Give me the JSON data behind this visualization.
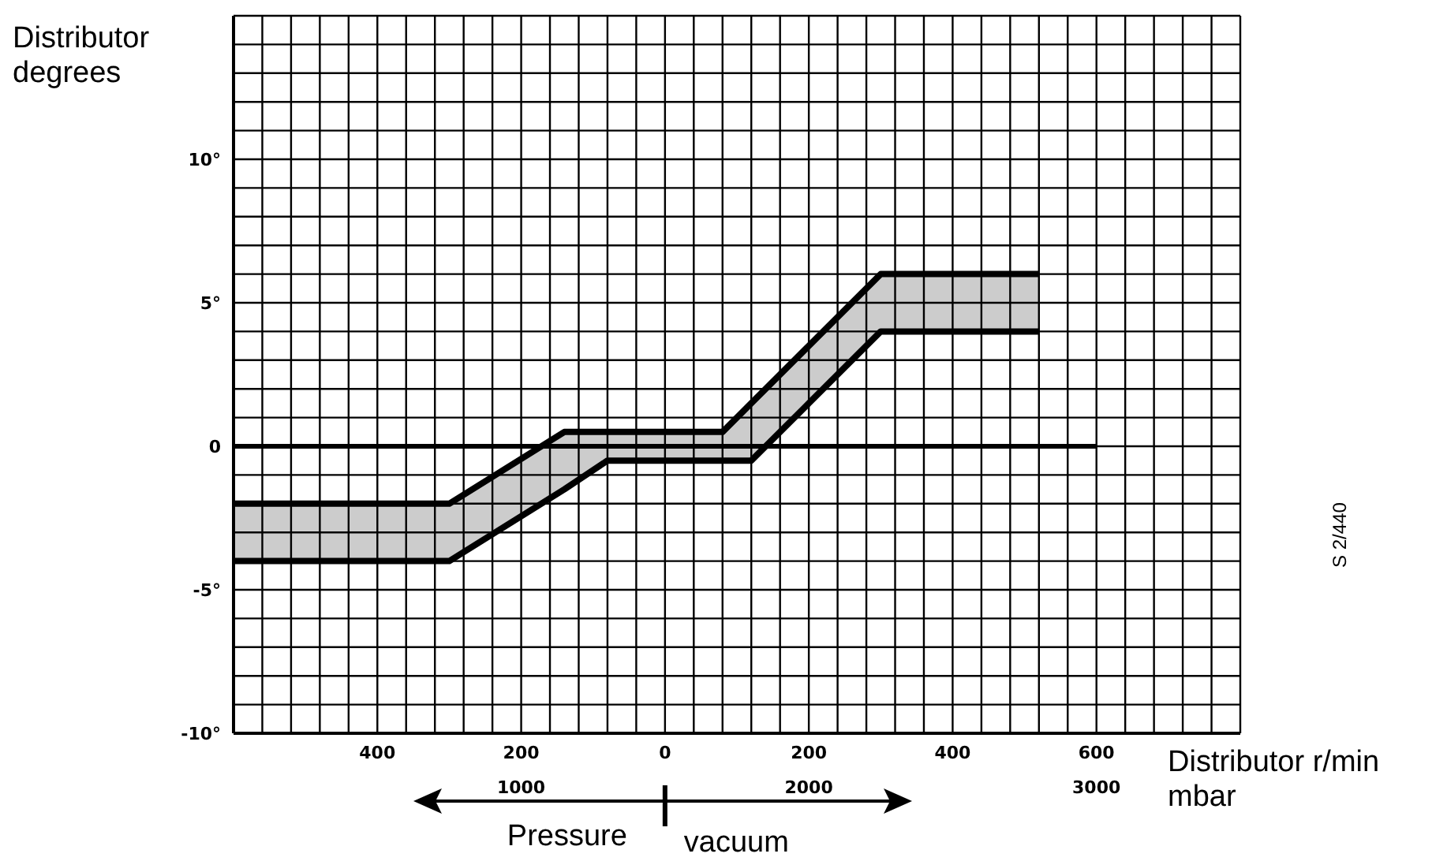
{
  "chart_data": {
    "type": "line",
    "xlabel": "mbar",
    "x2label": "Distributor r/min",
    "ylabel": "Distributor degrees",
    "xlim": [
      -600,
      800
    ],
    "x2lim": [
      0,
      3500
    ],
    "ylim": [
      -10,
      15
    ],
    "xticks": [
      {
        "value": -600,
        "label": null
      },
      {
        "value": -560,
        "label": null
      },
      {
        "value": -520,
        "label": null
      },
      {
        "value": -480,
        "label": null
      },
      {
        "value": -440,
        "label": null
      },
      {
        "value": -400,
        "label": "400"
      },
      {
        "value": -360,
        "label": null
      },
      {
        "value": -320,
        "label": null
      },
      {
        "value": -280,
        "label": null
      },
      {
        "value": -240,
        "label": null
      },
      {
        "value": -200,
        "label": "200"
      },
      {
        "value": -160,
        "label": null
      },
      {
        "value": -120,
        "label": null
      },
      {
        "value": -80,
        "label": null
      },
      {
        "value": -40,
        "label": null
      },
      0,
      {
        "value": 40,
        "label": null
      },
      {
        "value": 80,
        "label": null
      },
      {
        "value": 120,
        "label": null
      },
      {
        "value": 160,
        "label": null
      },
      200,
      {
        "value": 240,
        "label": null
      },
      {
        "value": 280,
        "label": null
      },
      {
        "value": 320,
        "label": null
      },
      {
        "value": 360,
        "label": null
      },
      400,
      {
        "value": 440,
        "label": null
      },
      {
        "value": 480,
        "label": null
      },
      {
        "value": 520,
        "label": null
      },
      {
        "value": 560,
        "label": null
      },
      600,
      {
        "value": 640,
        "label": null
      },
      {
        "value": 680,
        "label": null
      },
      {
        "value": 720,
        "label": null
      },
      {
        "value": 760,
        "label": null
      },
      {
        "value": 800,
        "label": null
      }
    ],
    "x2ticks": [
      1000,
      2000,
      3000
    ],
    "yticks": [
      {
        "value": -10,
        "label": "-10°"
      },
      {
        "value": -9,
        "label": null
      },
      {
        "value": -8,
        "label": null
      },
      {
        "value": -7,
        "label": null
      },
      {
        "value": -6,
        "label": null
      },
      {
        "value": -5,
        "label": "-5°"
      },
      {
        "value": -4,
        "label": null
      },
      {
        "value": -3,
        "label": null
      },
      {
        "value": -2,
        "label": null
      },
      {
        "value": -1,
        "label": null
      },
      0,
      {
        "value": 1,
        "label": null
      },
      {
        "value": 2,
        "label": null
      },
      {
        "value": 3,
        "label": null
      },
      {
        "value": 4,
        "label": null
      },
      {
        "value": 5,
        "label": "5°"
      },
      {
        "value": 6,
        "label": null
      },
      {
        "value": 7,
        "label": null
      },
      {
        "value": 8,
        "label": null
      },
      {
        "value": 9,
        "label": null
      },
      {
        "value": 10,
        "label": "10°"
      },
      {
        "value": 11,
        "label": null
      },
      {
        "value": 12,
        "label": null
      },
      {
        "value": 13,
        "label": null
      },
      {
        "value": 14,
        "label": null
      },
      {
        "value": 15,
        "label": null
      }
    ],
    "grid": true,
    "marker": "none",
    "line_style": "solid",
    "series": [
      {
        "color": "#000000",
        "x": [
          -600,
          -300,
          -140,
          -80,
          80,
          120,
          300,
          520
        ],
        "values": [
          -2,
          -2,
          0.5,
          0.5,
          0.5,
          1.5,
          6,
          6
        ],
        "lower": [
          -4,
          -4,
          -1.5,
          -0.5,
          -0.5,
          -0.5,
          4,
          4
        ],
        "upper": [
          -2,
          -2,
          0.5,
          0.5,
          0.5,
          1.5,
          6,
          6
        ]
      },
      {
        "color": "#000000",
        "x": [
          -600,
          -300,
          -140,
          -80,
          80,
          120,
          300,
          520
        ],
        "values": [
          -4,
          -4,
          -1.5,
          -0.5,
          -0.5,
          -0.5,
          4,
          4
        ]
      },
      {
        "color": "#000000",
        "x": [
          -600,
          600
        ],
        "values": [
          0,
          0
        ]
      }
    ],
    "annotations": [
      "Pressure",
      "vacuum",
      "S 2/440"
    ]
  }
}
